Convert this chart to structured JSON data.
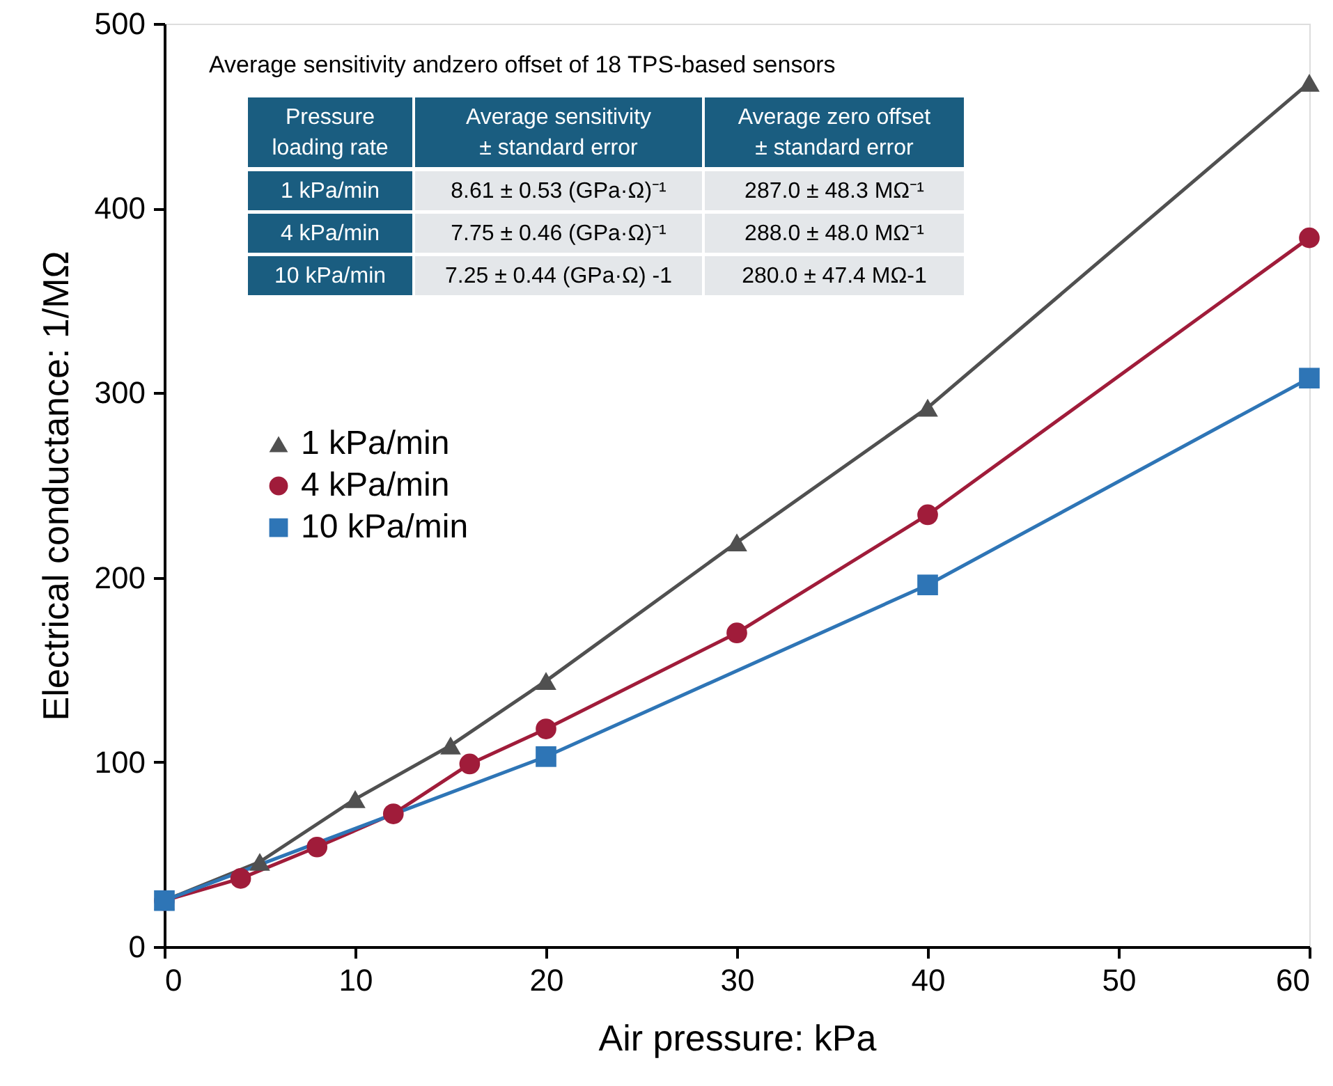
{
  "chart_data": {
    "type": "line",
    "xlabel": "Air pressure: kPa",
    "ylabel": "Electrical conductance: 1/MΩ",
    "xlim": [
      0,
      60
    ],
    "xticks": [
      0,
      10,
      20,
      30,
      40,
      50,
      60
    ],
    "ylim": [
      0,
      500
    ],
    "yticks": [
      0,
      100,
      200,
      300,
      400,
      500
    ],
    "grid": false,
    "legend": "left",
    "series": [
      {
        "name": "1 kPa/min",
        "color": "#505050",
        "marker": "triangle",
        "x": [
          0,
          5,
          10,
          15,
          20,
          30,
          40,
          60
        ],
        "values": [
          25,
          46,
          80,
          109,
          144,
          219,
          292,
          468
        ]
      },
      {
        "name": "4 kPa/min",
        "color": "#a01c3a",
        "marker": "circle",
        "x": [
          0,
          4,
          8,
          12,
          16,
          20,
          30,
          40,
          60
        ],
        "values": [
          25,
          37,
          54,
          72,
          99,
          118,
          170,
          234,
          384
        ]
      },
      {
        "name": "10 kPa/min",
        "color": "#2e75b6",
        "marker": "square",
        "x": [
          0,
          20,
          40,
          60
        ],
        "values": [
          25,
          103,
          196,
          308
        ]
      }
    ],
    "annotations": [
      "Average sensitivity andzero offset of 18 TPS-based sensors",
      "Pressure\nloading rate",
      "Average sensitivity\n± standard error",
      "Average zero  offset\n± standard error",
      "1 kPa/min",
      "8.61 ± 0.53 (GPa·Ω)⁻¹",
      "287.0 ± 48.3 MΩ⁻¹",
      "4 kPa/min",
      "7.75 ± 0.46 (GPa·Ω)⁻¹",
      "288.0 ± 48.0 MΩ⁻¹",
      "10 kPa/min",
      "7.25 ± 0.44 (GPa·Ω) -1",
      "280.0 ± 47.4 MΩ-1"
    ]
  }
}
